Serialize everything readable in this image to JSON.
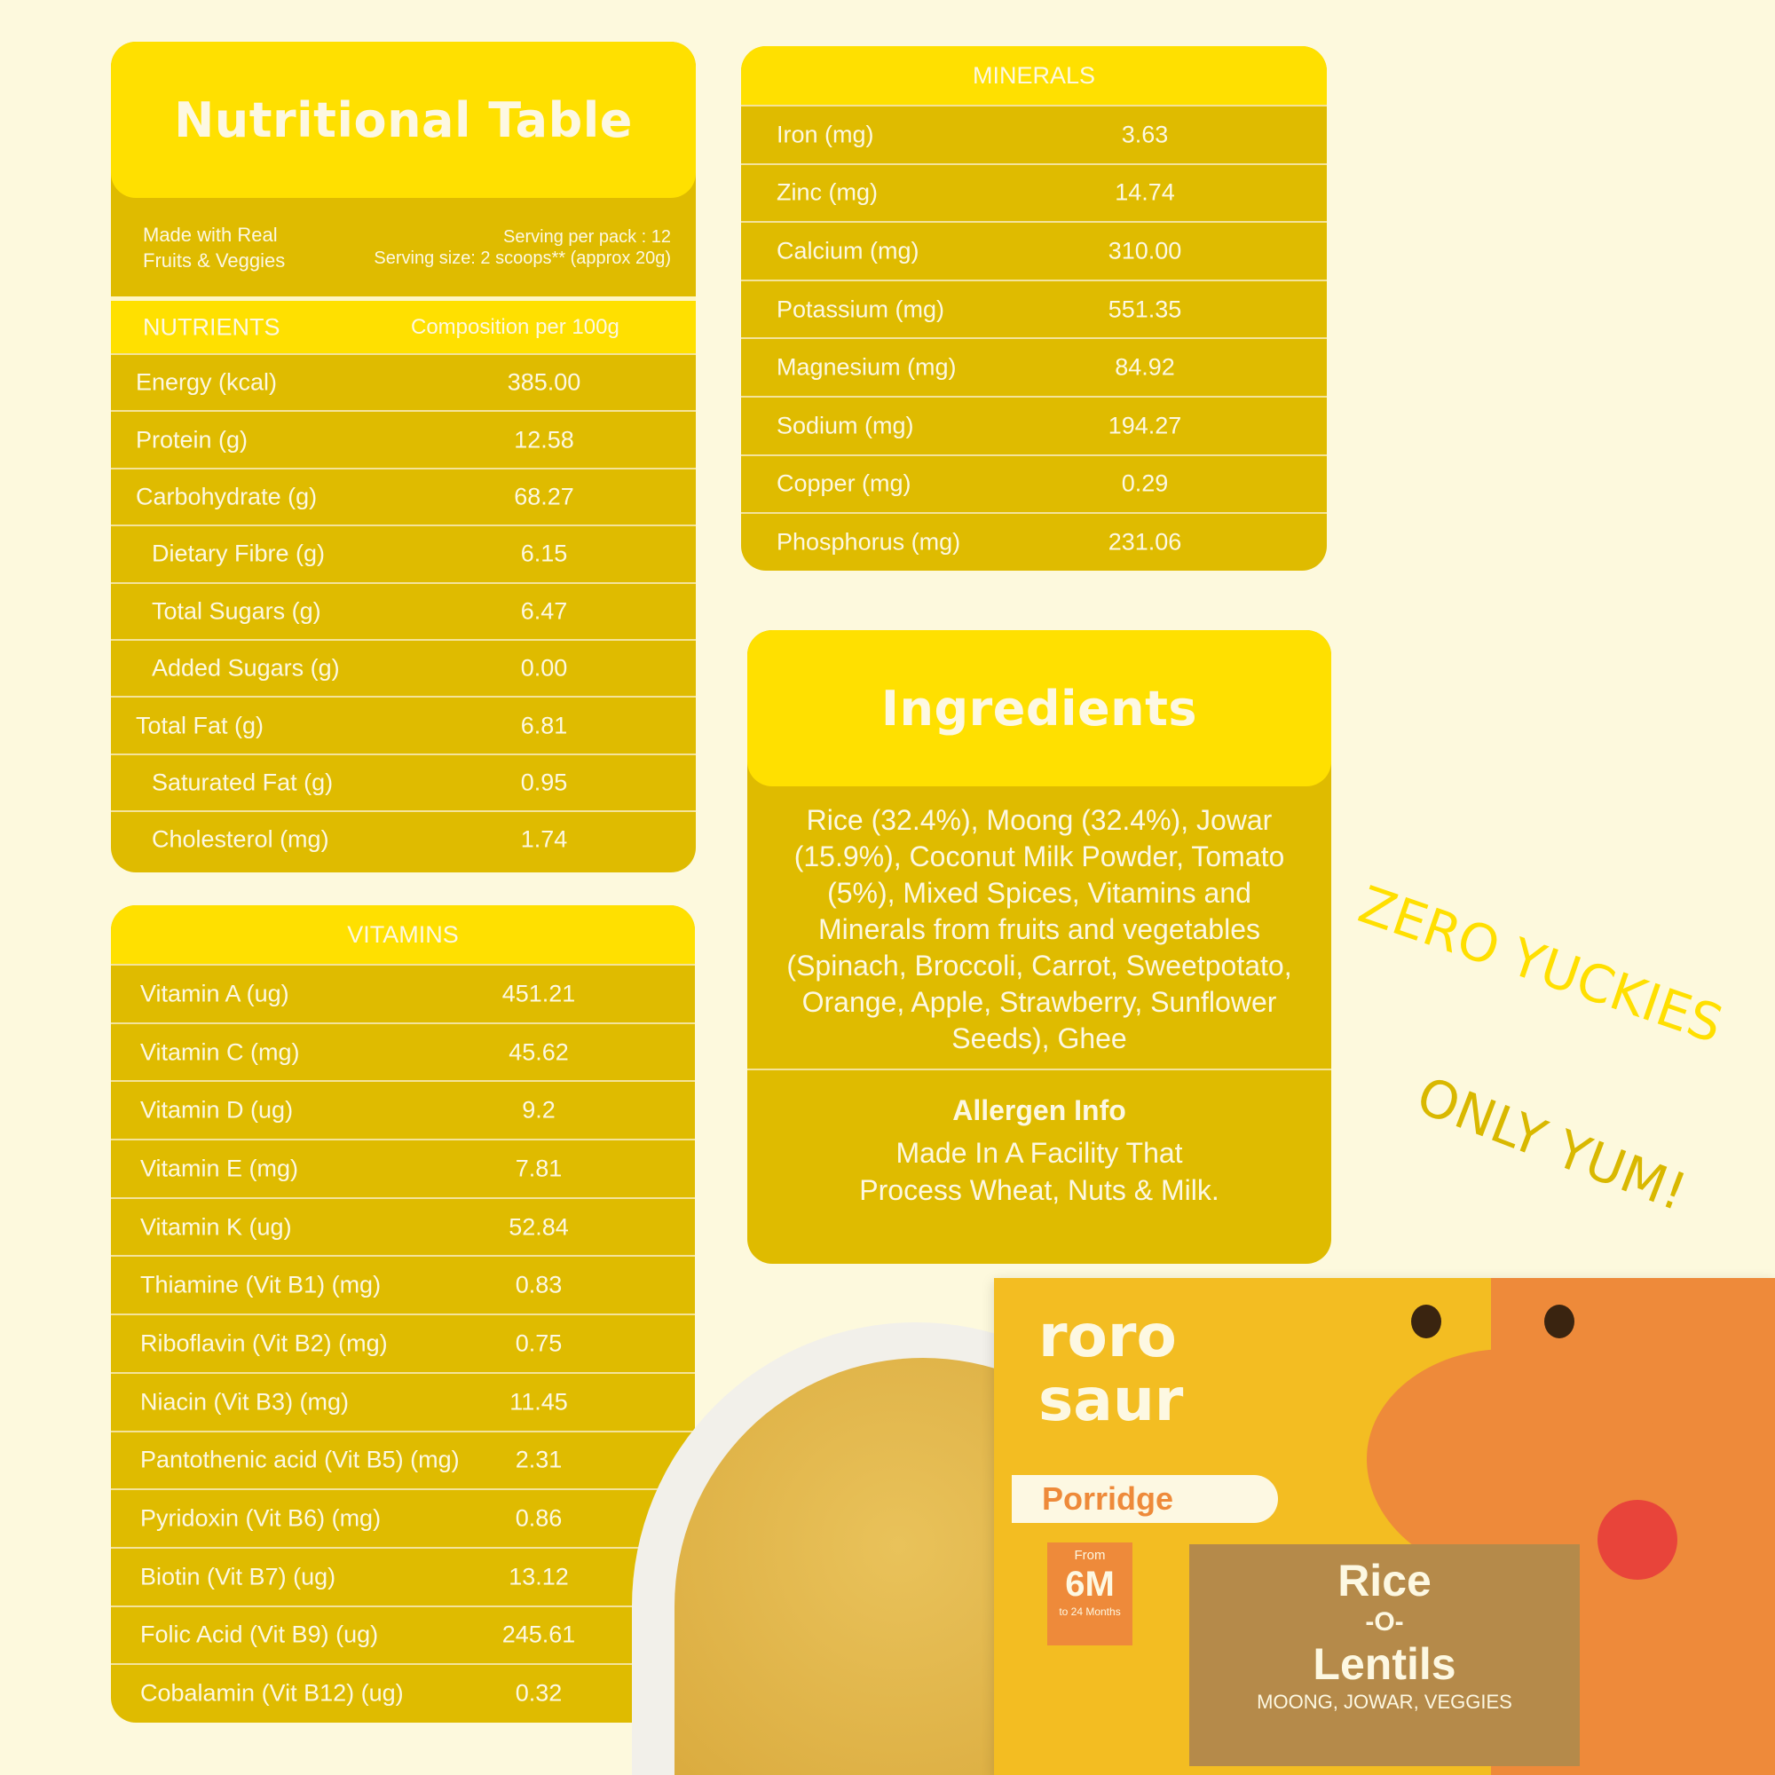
{
  "colors": {
    "background": "#fdf9dd",
    "header": "#ffe000",
    "body": "#dfbb00",
    "text": "#fdf8e2",
    "orange": "#ee8a3a"
  },
  "nutrition": {
    "title": "Nutritional Table",
    "tagline_1": "Made with Real",
    "tagline_2": "Fruits & Veggies",
    "serving_per_pack": "Serving per pack : 12",
    "serving_size": "Serving size: 2 scoops** (approx 20g)",
    "col_nutrients": "NUTRIENTS",
    "col_composition": "Composition per 100g",
    "rows": [
      {
        "label": "Energy (kcal)",
        "value": "385.00",
        "sub": false
      },
      {
        "label": "Protein (g)",
        "value": "12.58",
        "sub": false
      },
      {
        "label": "Carbohydrate (g)",
        "value": "68.27",
        "sub": false
      },
      {
        "label": "Dietary Fibre (g)",
        "value": "6.15",
        "sub": true
      },
      {
        "label": "Total Sugars (g)",
        "value": "6.47",
        "sub": true
      },
      {
        "label": "Added Sugars (g)",
        "value": "0.00",
        "sub": true
      },
      {
        "label": "Total Fat (g)",
        "value": "6.81",
        "sub": false
      },
      {
        "label": "Saturated Fat (g)",
        "value": "0.95",
        "sub": true
      },
      {
        "label": "Cholesterol (mg)",
        "value": "1.74",
        "sub": true
      }
    ]
  },
  "vitamins": {
    "title": "VITAMINS",
    "rows": [
      {
        "label": "Vitamin A (ug)",
        "value": "451.21"
      },
      {
        "label": "Vitamin C (mg)",
        "value": "45.62"
      },
      {
        "label": "Vitamin D (ug)",
        "value": "9.2"
      },
      {
        "label": "Vitamin E (mg)",
        "value": "7.81"
      },
      {
        "label": "Vitamin K (ug)",
        "value": "52.84"
      },
      {
        "label": "Thiamine (Vit B1) (mg)",
        "value": "0.83"
      },
      {
        "label": "Riboflavin (Vit B2) (mg)",
        "value": "0.75"
      },
      {
        "label": "Niacin (Vit B3) (mg)",
        "value": "11.45"
      },
      {
        "label": "Pantothenic acid (Vit B5) (mg)",
        "value": "2.31"
      },
      {
        "label": "Pyridoxin (Vit B6) (mg)",
        "value": "0.86"
      },
      {
        "label": "Biotin (Vit B7) (ug)",
        "value": "13.12"
      },
      {
        "label": "Folic Acid (Vit B9) (ug)",
        "value": "245.61"
      },
      {
        "label": "Cobalamin (Vit B12) (ug)",
        "value": "0.32"
      }
    ]
  },
  "minerals": {
    "title": "MINERALS",
    "rows": [
      {
        "label": "Iron (mg)",
        "value": "3.63"
      },
      {
        "label": "Zinc (mg)",
        "value": "14.74"
      },
      {
        "label": "Calcium (mg)",
        "value": "310.00"
      },
      {
        "label": "Potassium (mg)",
        "value": "551.35"
      },
      {
        "label": "Magnesium (mg)",
        "value": "84.92"
      },
      {
        "label": "Sodium (mg)",
        "value": "194.27"
      },
      {
        "label": "Copper (mg)",
        "value": "0.29"
      },
      {
        "label": "Phosphorus (mg)",
        "value": "231.06"
      }
    ]
  },
  "ingredients": {
    "title": "Ingredients",
    "text": "Rice (32.4%), Moong (32.4%), Jowar (15.9%), Coconut Milk Powder, Tomato (5%), Mixed Spices, Vitamins and Minerals from fruits and vegetables (Spinach, Broccoli, Carrot, Sweetpotato, Orange, Apple, Strawberry, Sunflower Seeds), Ghee",
    "allergen_title": "Allergen Info",
    "allergen_line_1": "Made In A Facility That",
    "allergen_line_2": "Process Wheat, Nuts & Milk."
  },
  "slogan": {
    "line_1": "ZERO YUCKIES",
    "line_2": "ONLY YUM!"
  },
  "product": {
    "brand": "roro saur",
    "category": "Porridge",
    "age_from": "From",
    "age": "6M",
    "age_to": "to 24 Months",
    "name_1": "Rice",
    "name_2": "-O-",
    "name_3": "Lentils",
    "subtitle": "MOONG, JOWAR, VEGGIES"
  }
}
